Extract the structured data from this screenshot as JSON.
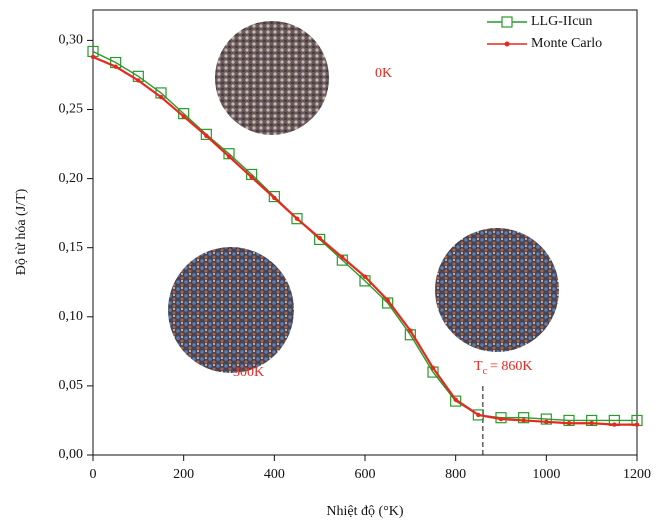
{
  "chart_data": {
    "type": "line",
    "x_label": "Nhiệt độ (°K)",
    "y_label": "Độ từ hóa (J/T)",
    "x": [
      0,
      50,
      100,
      150,
      200,
      250,
      300,
      350,
      400,
      450,
      500,
      550,
      600,
      650,
      700,
      750,
      800,
      850,
      900,
      950,
      1000,
      1050,
      1100,
      1150,
      1200
    ],
    "series": [
      {
        "name": "LLG-IIcun",
        "color": "#2a9a2a",
        "marker": "square",
        "values": [
          0.292,
          0.284,
          0.274,
          0.262,
          0.247,
          0.232,
          0.218,
          0.203,
          0.187,
          0.171,
          0.156,
          0.141,
          0.126,
          0.11,
          0.087,
          0.06,
          0.039,
          0.029,
          0.027,
          0.027,
          0.026,
          0.025,
          0.025,
          0.025,
          0.025
        ]
      },
      {
        "name": "Monte Carlo",
        "color": "#e8281e",
        "marker": "dot",
        "values": [
          0.288,
          0.281,
          0.271,
          0.259,
          0.245,
          0.231,
          0.216,
          0.201,
          0.186,
          0.171,
          0.157,
          0.143,
          0.129,
          0.112,
          0.09,
          0.063,
          0.04,
          0.029,
          0.026,
          0.025,
          0.024,
          0.023,
          0.023,
          0.022,
          0.022
        ]
      }
    ],
    "xlim": [
      0,
      1200
    ],
    "xticks": [
      0,
      200,
      400,
      600,
      800,
      1000,
      1200
    ],
    "ylim": [
      0,
      0.322
    ],
    "yticks": [
      {
        "value": 0,
        "label": "0,00"
      },
      {
        "value": 0.05,
        "label": "0,05"
      },
      {
        "value": 0.1,
        "label": "0,10"
      },
      {
        "value": 0.15,
        "label": "0,15"
      },
      {
        "value": 0.2,
        "label": "0,20"
      },
      {
        "value": 0.25,
        "label": "0,25"
      },
      {
        "value": 0.3,
        "label": "0,30"
      }
    ],
    "legend": "upper right",
    "annotations": [
      {
        "text": "0K"
      },
      {
        "text": "300K"
      }
    ],
    "tc": {
      "symbol": "T",
      "subscript": "c",
      "text": "= 860K",
      "x": 860
    }
  }
}
